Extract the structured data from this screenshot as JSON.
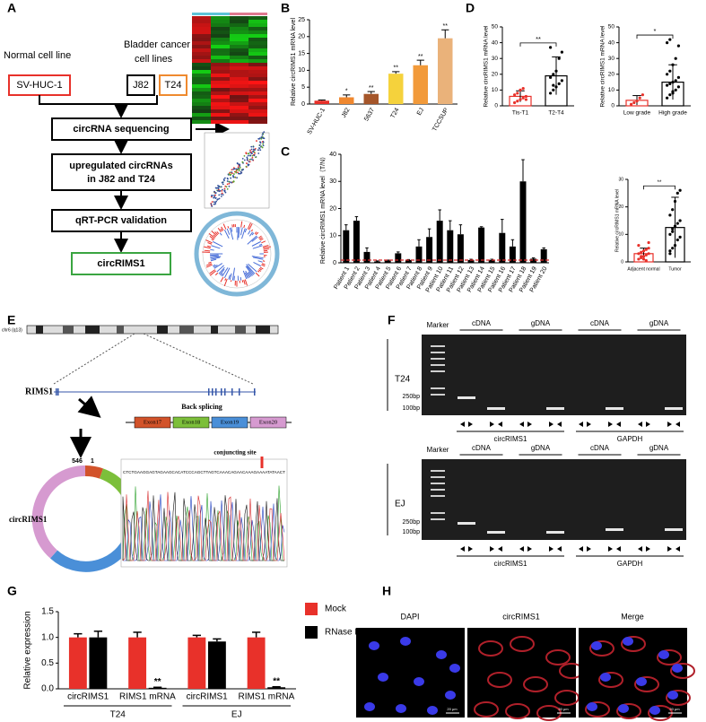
{
  "panel_labels": [
    "A",
    "B",
    "C",
    "D",
    "E",
    "F",
    "G",
    "H"
  ],
  "panel_a": {
    "normal_label": "Normal cell line",
    "cancer_label": [
      "Bladder cancer",
      "cell lines"
    ],
    "cell_lines": [
      "SV-HUC-1",
      "J82",
      "T24"
    ],
    "steps": [
      "circRNA sequencing",
      "upregulated circRNAs",
      "in J82 and T24",
      "qRT-PCR validation",
      "circRIMS1"
    ]
  },
  "panel_e": {
    "chromosome": "chr6 (q13)",
    "gene": "RIMS1",
    "back_splicing": "Back splicing",
    "exons": [
      "Exon17",
      "Exon18",
      "Exon19",
      "Exon20"
    ],
    "circ_name": "circRIMS1",
    "circ_positions": [
      "546",
      "1"
    ],
    "junction": "conjuncting site",
    "sequence": "CTCTGAAGGAGTAGAAGCACATCCCAGCTTAGTCAAACAGAACAAAGAAAATATAACT"
  },
  "panel_f": {
    "gels": [
      {
        "cell_line": "T24",
        "marker": "Marker",
        "lanes": [
          "cDNA",
          "gDNA",
          "cDNA",
          "gDNA"
        ],
        "sizes": [
          "250bp",
          "100bp"
        ],
        "targets": [
          "circRIMS1",
          "GAPDH"
        ]
      },
      {
        "cell_line": "EJ",
        "marker": "Marker",
        "lanes": [
          "cDNA",
          "gDNA",
          "cDNA",
          "gDNA"
        ],
        "sizes": [
          "250bp",
          "100bp"
        ],
        "targets": [
          "circRIMS1",
          "GAPDH"
        ]
      }
    ]
  },
  "panel_h": {
    "channels": [
      "DAPI",
      "circRIMS1",
      "Merge"
    ],
    "scale_bar": "20 μm"
  },
  "chart_data": [
    {
      "type": "bar",
      "ylabel": "Relative circRIMS1 mRNA level",
      "categories": [
        "SV-HUC-1",
        "J82",
        "5637",
        "T24",
        "EJ",
        "TCCSUP"
      ],
      "values": [
        1,
        2,
        3,
        9,
        11.5,
        19.5
      ],
      "errors": [
        0.2,
        0.7,
        0.7,
        0.6,
        1.5,
        2.5
      ],
      "colors": [
        "#e8312a",
        "#f0882f",
        "#a5562a",
        "#f5d23c",
        "#f29a3a",
        "#eab27a"
      ],
      "significance": [
        null,
        "*",
        "**",
        "**",
        "**",
        "**"
      ],
      "ylim": [
        0,
        25
      ],
      "yticks": [
        0,
        5,
        10,
        15,
        20,
        25
      ]
    },
    {
      "type": "bar",
      "ylabel": "Relative circRIMS1 mRNA level（T/N）",
      "categories": [
        "Patient 1",
        "Patient 2",
        "Patient 3",
        "Patient 4",
        "Patient 5",
        "Patient 6",
        "Patient 7",
        "Patient 8",
        "Patient 9",
        "Patient 10",
        "Patient 11",
        "Patient 12",
        "Patient 13",
        "Patient 14",
        "Patient 15",
        "Patient 16",
        "Patient 17",
        "Patient 18",
        "Patient 19",
        "Patient 20"
      ],
      "values": [
        12,
        15.5,
        4,
        0.5,
        0.8,
        3.5,
        1,
        6,
        9.5,
        15.5,
        12,
        10.5,
        1,
        13,
        1,
        11,
        6,
        30,
        1.5,
        5
      ],
      "errors": [
        2,
        1.5,
        1.5,
        0.2,
        0.2,
        0.5,
        0.2,
        2.5,
        3,
        4,
        3.5,
        3.5,
        0.3,
        0.3,
        0.3,
        5,
        2.5,
        8,
        0.3,
        0.5
      ],
      "color": "#000000",
      "reference_line": 1,
      "reference_color": "#d62728",
      "ylim": [
        0,
        40
      ],
      "yticks": [
        0,
        10,
        20,
        30,
        40
      ]
    },
    {
      "type": "dot_bar",
      "ylabel": "Relative circRIMS1 mRNA level",
      "categories": [
        "Adjacent normal",
        "Tumor"
      ],
      "values": [
        3,
        12.5
      ],
      "errors": [
        2,
        11
      ],
      "points": [
        [
          1,
          1.5,
          2,
          2.5,
          3,
          3,
          3.5,
          4,
          4.5,
          5,
          6,
          2,
          1,
          0.5,
          7
        ],
        [
          3,
          5,
          6,
          8,
          9,
          10,
          12,
          13,
          14,
          15,
          17,
          19,
          22,
          25,
          26,
          4,
          11
        ]
      ],
      "colors": [
        "#e8312a",
        "#000000"
      ],
      "significance": "**",
      "ylim": [
        0,
        30
      ],
      "yticks": [
        0,
        10,
        20,
        30
      ]
    },
    {
      "type": "dot_bar",
      "ylabel": "Relative circRIMS1 mRNA level",
      "categories": [
        "Tis-T1",
        "T2-T4"
      ],
      "values": [
        6,
        19
      ],
      "errors": [
        3.5,
        12
      ],
      "points": [
        [
          2,
          3,
          4,
          5,
          6,
          7,
          8,
          10,
          11,
          4
        ],
        [
          8,
          10,
          12,
          14,
          16,
          18,
          20,
          22,
          30,
          34,
          37,
          13
        ]
      ],
      "colors": [
        "#e8312a",
        "#000000"
      ],
      "significance": "**",
      "ylim": [
        0,
        50
      ],
      "yticks": [
        0,
        10,
        20,
        30,
        40,
        50
      ]
    },
    {
      "type": "dot_bar",
      "ylabel": "Relative circRIMS1 mRNA level",
      "categories": [
        "Low grade",
        "High grade"
      ],
      "values": [
        3.5,
        15
      ],
      "errors": [
        3,
        11
      ],
      "points": [
        [
          1,
          2,
          3,
          5,
          7
        ],
        [
          5,
          7,
          9,
          10,
          12,
          13,
          14,
          15,
          16,
          18,
          20,
          22,
          26,
          30,
          38,
          40,
          42,
          8
        ]
      ],
      "colors": [
        "#e8312a",
        "#000000"
      ],
      "significance": "*",
      "ylim": [
        0,
        50
      ],
      "yticks": [
        0,
        10,
        20,
        30,
        40,
        50
      ]
    },
    {
      "type": "grouped_bar",
      "ylabel": "Relative expression",
      "categories": [
        "circRIMS1",
        "RIMS1 mRNA",
        "circRIMS1",
        "RIMS1 mRNA"
      ],
      "groups": [
        "T24",
        "EJ"
      ],
      "series": [
        {
          "name": "Mock",
          "color": "#e8312a",
          "values": [
            1,
            1,
            1,
            1
          ],
          "errors": [
            0.07,
            0.1,
            0.04,
            0.1
          ],
          "significance": [
            null,
            null,
            null,
            null
          ]
        },
        {
          "name": "RNase R",
          "color": "#000000",
          "values": [
            1,
            0.02,
            0.92,
            0.03
          ],
          "errors": [
            0.12,
            0.01,
            0.05,
            0.01
          ],
          "significance": [
            null,
            "**",
            null,
            "**"
          ]
        }
      ],
      "ylim": [
        0,
        1.5
      ],
      "yticks": [
        {
          "value": 0,
          "label": "0.0"
        },
        {
          "value": 0.5,
          "label": "0.5"
        },
        {
          "value": 1,
          "label": "1.0"
        },
        {
          "value": 1.5,
          "label": "1.5"
        }
      ]
    }
  ]
}
